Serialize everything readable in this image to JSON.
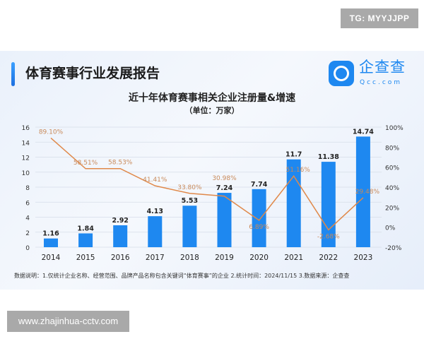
{
  "badge": "TG: MYYJJPP",
  "report_title": "体育赛事行业发展报告",
  "logo": {
    "name": "企查查",
    "domain": "Qcc.com"
  },
  "note": "数据说明：1.仅统计企业名称、经营范围、品牌产品名称包含关键词“体育赛事”的企业  2.统计时间：2024/11/15   3.数据来源：企查查",
  "watermark": "www.zhajinhua-cctv.com",
  "colors": {
    "bar": "#1e88f0",
    "line": "#e0894a",
    "growth_label": "#c98a5a"
  },
  "chart_data": {
    "type": "bar+line",
    "title": "近十年体育赛事相关企业注册量&增速",
    "subtitle": "（单位：万家）",
    "categories": [
      "2014",
      "2015",
      "2016",
      "2017",
      "2018",
      "2019",
      "2020",
      "2021",
      "2022",
      "2023"
    ],
    "series": [
      {
        "type": "bar",
        "axis": "left",
        "values": [
          1.16,
          1.84,
          2.92,
          4.13,
          5.53,
          7.24,
          7.74,
          11.7,
          11.38,
          14.74
        ],
        "labels": [
          "1.16",
          "1.84",
          "2.92",
          "4.13",
          "5.53",
          "7.24",
          "7.74",
          "11.7",
          "11.38",
          "14.74"
        ]
      },
      {
        "type": "line",
        "axis": "right",
        "values": [
          89.1,
          58.51,
          58.53,
          41.41,
          33.8,
          30.98,
          6.89,
          51.16,
          -2.68,
          29.48
        ],
        "labels": [
          "89.10%",
          "58.51%",
          "58.53%",
          "41.41%",
          "33.80%",
          "30.98%",
          "6.89%",
          "51.16%",
          "-2.68%",
          "29.48%"
        ]
      }
    ],
    "left_axis": {
      "ylim": [
        0,
        16
      ],
      "ticks": [
        "0",
        "2",
        "4",
        "6",
        "8",
        "10",
        "12",
        "14",
        "16"
      ]
    },
    "right_axis": {
      "ylim": [
        -20,
        100
      ],
      "ticks": [
        "-20%",
        "0%",
        "20%",
        "40%",
        "60%",
        "80%",
        "100%"
      ]
    },
    "grid": true,
    "legend": "none"
  }
}
